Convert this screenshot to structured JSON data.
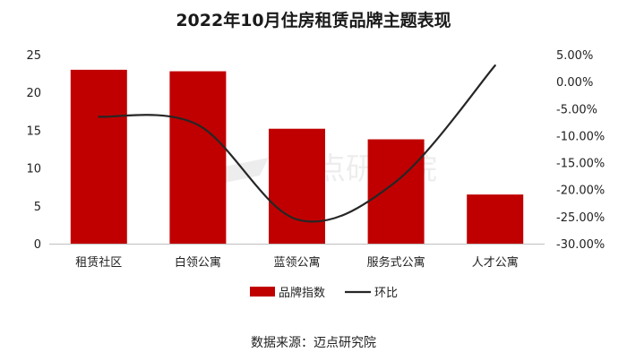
{
  "chart_data": {
    "type": "bar",
    "title": "2022年10月住房租赁品牌主题表现",
    "categories": [
      "租赁社区",
      "白领公寓",
      "蓝领公寓",
      "服务式公寓",
      "人才公寓"
    ],
    "series": [
      {
        "name": "品牌指数",
        "type": "bar",
        "axis": "left",
        "color": "#C00000",
        "values": [
          23.0,
          22.8,
          15.2,
          13.8,
          6.5
        ]
      },
      {
        "name": "环比",
        "type": "line",
        "axis": "right",
        "color": "#262626",
        "smooth": true,
        "values": [
          -6.5,
          -8.0,
          -25.5,
          -18.5,
          3.0
        ]
      }
    ],
    "left_axis": {
      "min": 0,
      "max": 25,
      "ticks": [
        0,
        5,
        10,
        15,
        20,
        25
      ]
    },
    "right_axis": {
      "min": -30,
      "max": 5,
      "unit": "%",
      "ticks": [
        "-30.00%",
        "-25.00%",
        "-20.00%",
        "-15.00%",
        "-10.00%",
        "-5.00%",
        "0.00%",
        "5.00%"
      ]
    },
    "legend_position": "bottom",
    "grid": false,
    "source": "数据来源：迈点研究院",
    "watermark": "迈点研究院"
  }
}
